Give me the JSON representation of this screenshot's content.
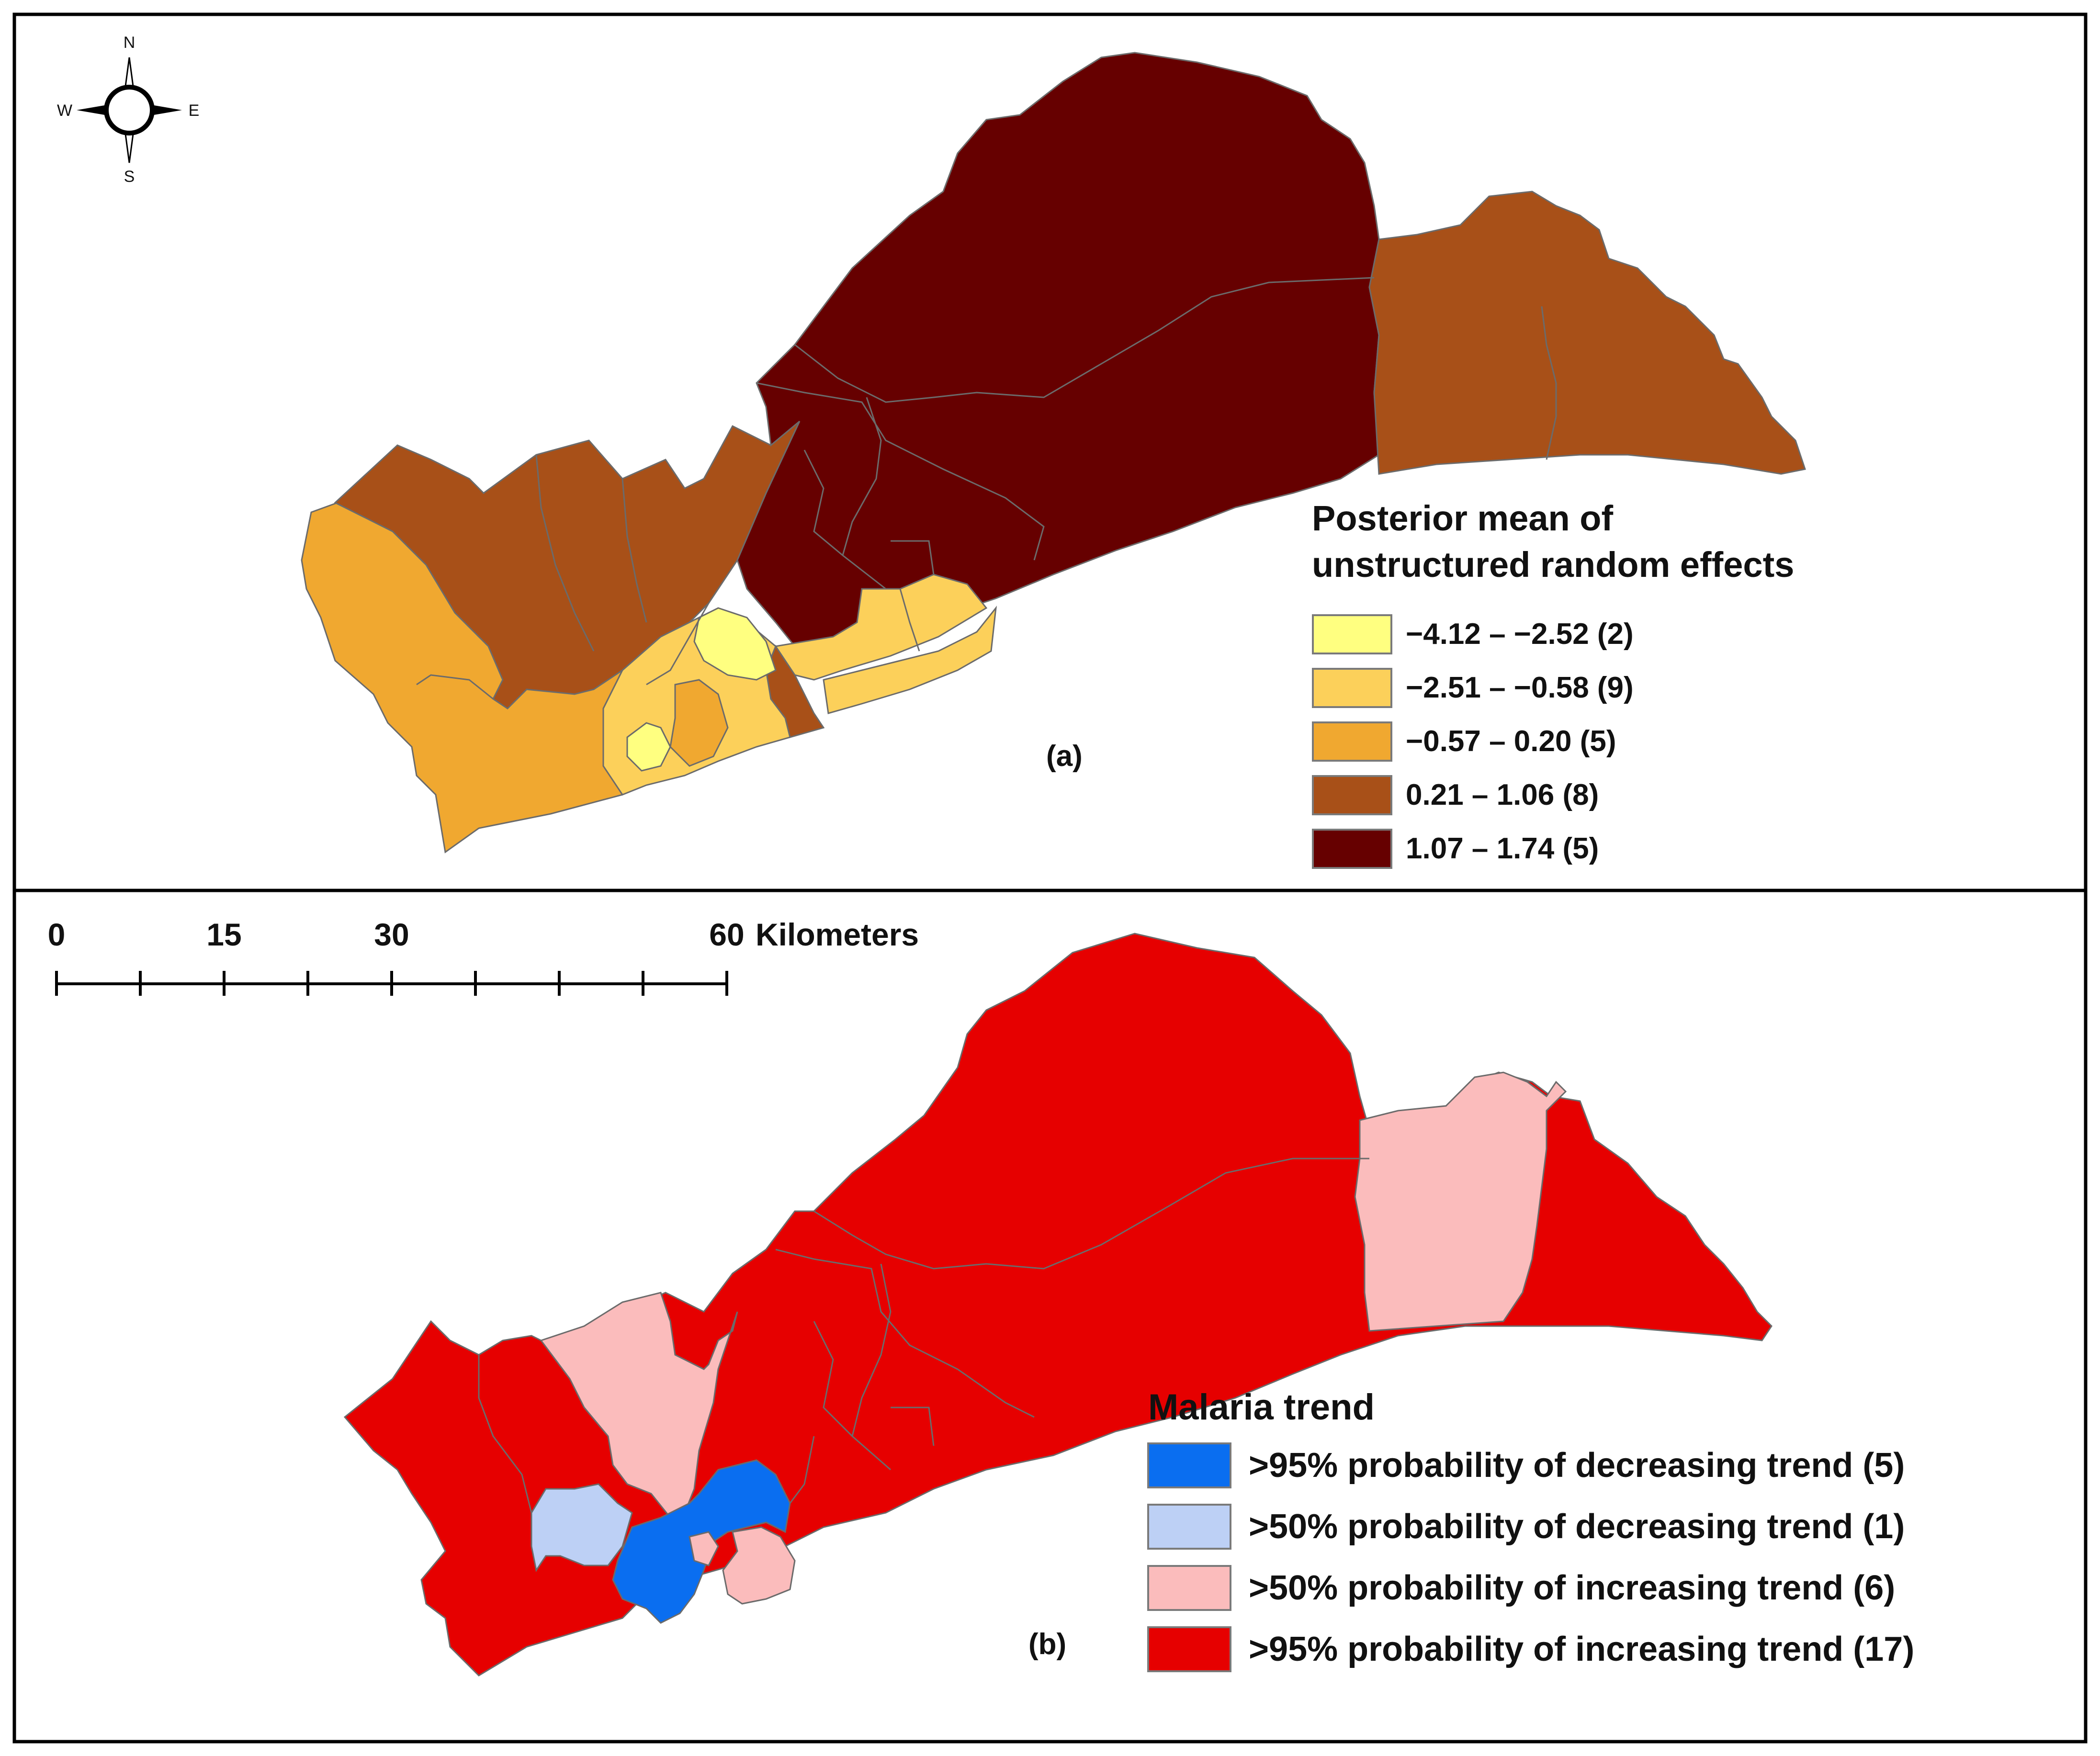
{
  "compass": {
    "north": "N",
    "south": "S",
    "east": "E",
    "west": "W"
  },
  "panel_a": {
    "tag": "(a)",
    "legend": {
      "title_line1": "Posterior mean of",
      "title_line2": "unstructured random effects",
      "items": [
        {
          "label": "−4.12 – −2.52 (2)",
          "color": "#ffff80"
        },
        {
          "label": "−2.51 – −0.58 (9)",
          "color": "#fcd05a"
        },
        {
          "label": "−0.57 – 0.20 (5)",
          "color": "#f0a830"
        },
        {
          "label": "0.21 – 1.06 (8)",
          "color": "#a85018"
        },
        {
          "label": "1.07 – 1.74 (5)",
          "color": "#660000"
        }
      ]
    }
  },
  "scale_bar": {
    "ticks": [
      "0",
      "15",
      "30",
      "60"
    ],
    "unit": "Kilometers"
  },
  "panel_b": {
    "tag": "(b)",
    "legend": {
      "title": "Malaria trend",
      "items": [
        {
          "label": ">95% probability of decreasing trend (5)",
          "color": "#0a6ef0"
        },
        {
          "label": ">50% probability of decreasing trend (1)",
          "color": "#bdd0f5"
        },
        {
          "label": ">50% probability of increasing trend (6)",
          "color": "#fbbcbc"
        },
        {
          "label": ">95% probability of increasing trend (17)",
          "color": "#e60000"
        }
      ]
    }
  }
}
